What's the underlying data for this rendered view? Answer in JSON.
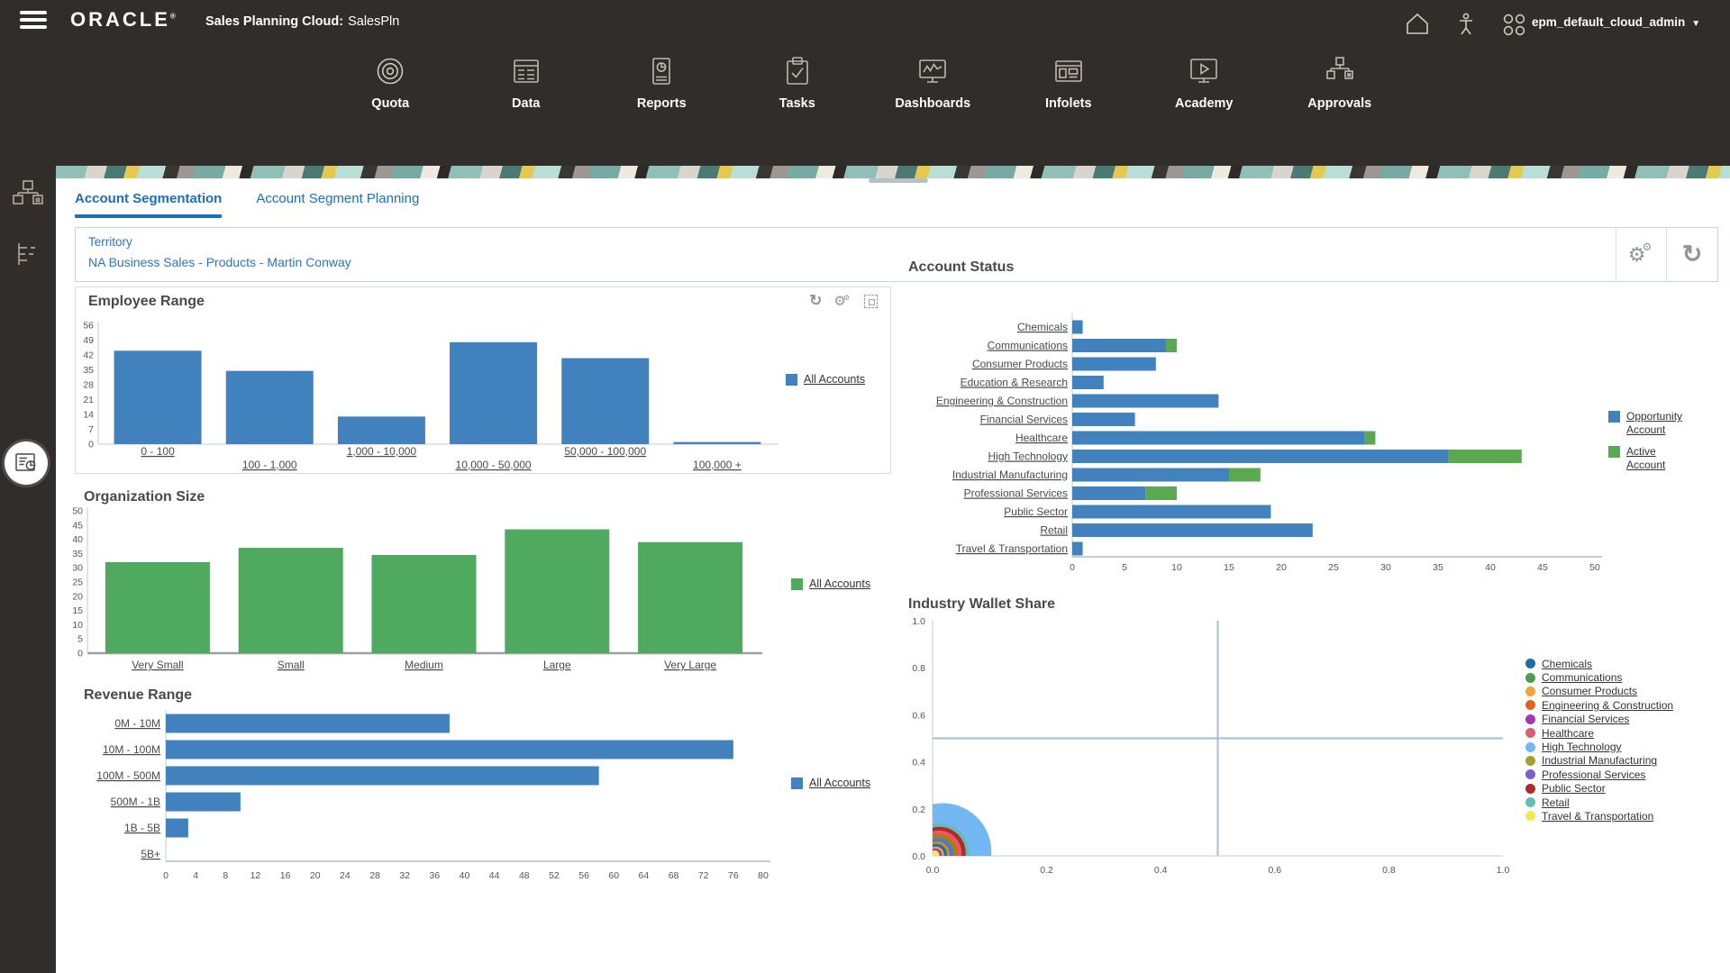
{
  "topbar": {
    "brand": "ORACLE",
    "registered": "®",
    "app_label": "Sales Planning Cloud:",
    "app_name": "SalesPln",
    "user": "epm_default_cloud_admin"
  },
  "nav": {
    "items": [
      {
        "label": "Quota",
        "icon": "target-icon"
      },
      {
        "label": "Data",
        "icon": "table-icon"
      },
      {
        "label": "Reports",
        "icon": "report-document-icon"
      },
      {
        "label": "Tasks",
        "icon": "clipboard-check-icon"
      },
      {
        "label": "Dashboards",
        "icon": "monitor-chart-icon"
      },
      {
        "label": "Infolets",
        "icon": "window-tiles-icon"
      },
      {
        "label": "Academy",
        "icon": "monitor-play-icon"
      },
      {
        "label": "Approvals",
        "icon": "hierarchy-icon"
      }
    ]
  },
  "sidebar": {
    "items": [
      {
        "icon": "org-hierarchy-icon",
        "active": false
      },
      {
        "icon": "outline-tree-icon",
        "active": false
      },
      {
        "icon": "report-pie-icon",
        "active": true
      }
    ]
  },
  "tabs": [
    {
      "label": "Account Segmentation",
      "active": true
    },
    {
      "label": "Account Segment Planning",
      "active": false
    }
  ],
  "pov": {
    "dimension": "Territory",
    "member": "NA Business Sales - Products - Martin Conway"
  },
  "colors": {
    "header_bg": "#312D2A",
    "bar_blue": "#4181BE",
    "bar_green": "#4FA95E",
    "status_green": "#5AA84F",
    "tab_blue": "#1A6FC0",
    "link_blue": "#2D74C4"
  },
  "chart_data": [
    {
      "id": "employee-range",
      "type": "bar",
      "title": "Employee Range",
      "categories": [
        "0 - 100",
        "100 - 1,000",
        "1,000 - 10,000",
        "10,000 - 50,000",
        "50,000 - 100,000",
        "100,000 +"
      ],
      "series": [
        {
          "name": "All Accounts",
          "color": "#4181BE",
          "values": [
            44,
            34.5,
            13,
            48,
            40.5,
            1
          ]
        }
      ],
      "ylim": [
        0,
        56
      ],
      "ytick_step": 7,
      "grid": false,
      "legend_position": "right"
    },
    {
      "id": "organization-size",
      "type": "bar",
      "title": "Organization Size",
      "categories": [
        "Very Small",
        "Small",
        "Medium",
        "Large",
        "Very Large"
      ],
      "series": [
        {
          "name": "All Accounts",
          "color": "#4FA95E",
          "values": [
            32,
            37,
            34.5,
            43.5,
            39
          ]
        }
      ],
      "ylim": [
        0,
        50
      ],
      "ytick_step": 5,
      "grid": false,
      "legend_position": "right"
    },
    {
      "id": "revenue-range",
      "type": "hbar",
      "title": "Revenue Range",
      "categories": [
        "0M - 10M",
        "10M - 100M",
        "100M - 500M",
        "500M - 1B",
        "1B - 5B",
        "5B+"
      ],
      "series": [
        {
          "name": "All Accounts",
          "color": "#4181BE",
          "values": [
            38,
            76,
            58,
            10,
            3,
            0
          ]
        }
      ],
      "xlim": [
        0,
        80
      ],
      "xtick_step": 4,
      "grid": false,
      "legend_position": "right"
    },
    {
      "id": "account-status",
      "type": "stacked-hbar",
      "title": "Account Status",
      "categories": [
        "Chemicals",
        "Communications",
        "Consumer Products",
        "Education & Research",
        "Engineering & Construction",
        "Financial Services",
        "Healthcare",
        "High Technology",
        "Industrial Manufacturing",
        "Professional Services",
        "Public Sector",
        "Retail",
        "Travel & Transportation"
      ],
      "series": [
        {
          "name": "Opportunity Account",
          "color": "#4181BE",
          "values": [
            1,
            9,
            8,
            3,
            14,
            6,
            28,
            36,
            15,
            7,
            19,
            23,
            1
          ]
        },
        {
          "name": "Active Account",
          "color": "#5AA84F",
          "values": [
            0,
            1,
            0,
            0,
            0,
            0,
            1,
            7,
            3,
            3,
            0,
            0,
            0
          ]
        }
      ],
      "xlim": [
        0,
        50
      ],
      "xtick_step": 5,
      "grid": false,
      "legend_position": "right"
    },
    {
      "id": "industry-wallet-share",
      "type": "bubble",
      "title": "Industry Wallet Share",
      "xlim": [
        0,
        1
      ],
      "ylim": [
        0,
        1
      ],
      "tick_step": 0.2,
      "reference_lines": {
        "x": 0.5,
        "y": 0.5
      },
      "points": [
        {
          "name": "Chemicals",
          "color": "#1F6CAD",
          "x": 0.007,
          "y": 0.007,
          "r": 0.018
        },
        {
          "name": "Communications",
          "color": "#4A9E4E",
          "x": 0.01,
          "y": 0.01,
          "r": 0.03
        },
        {
          "name": "Consumer Products",
          "color": "#F2A33A",
          "x": 0.006,
          "y": 0.006,
          "r": 0.014
        },
        {
          "name": "Engineering & Construction",
          "color": "#E2631B",
          "x": 0.01,
          "y": 0.01,
          "r": 0.035
        },
        {
          "name": "Financial Services",
          "color": "#A238B5",
          "x": 0.005,
          "y": 0.005,
          "r": 0.011
        },
        {
          "name": "Healthcare",
          "color": "#E05C6E",
          "x": 0.011,
          "y": 0.011,
          "r": 0.04
        },
        {
          "name": "High Technology",
          "color": "#74B8F3",
          "x": 0.018,
          "y": 0.018,
          "r": 0.085
        },
        {
          "name": "Industrial Manufacturing",
          "color": "#A3A128",
          "x": 0.008,
          "y": 0.008,
          "r": 0.022
        },
        {
          "name": "Professional Services",
          "color": "#7A5FD0",
          "x": 0.009,
          "y": 0.009,
          "r": 0.026
        },
        {
          "name": "Public Sector",
          "color": "#AF2B25",
          "x": 0.012,
          "y": 0.012,
          "r": 0.046
        },
        {
          "name": "Retail",
          "color": "#62BDB4",
          "x": 0.012,
          "y": 0.012,
          "r": 0.052
        },
        {
          "name": "Travel & Transportation",
          "color": "#F2E94E",
          "x": 0.004,
          "y": 0.004,
          "r": 0.008
        }
      ]
    }
  ]
}
